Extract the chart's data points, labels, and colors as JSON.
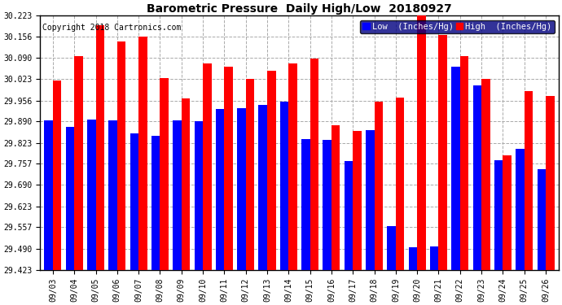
{
  "title": "Barometric Pressure  Daily High/Low  20180927",
  "copyright": "Copyright 2018 Cartronics.com",
  "ylabel_low": "Low  (Inches/Hg)",
  "ylabel_high": "High  (Inches/Hg)",
  "dates": [
    "09/03",
    "09/04",
    "09/05",
    "09/06",
    "09/07",
    "09/08",
    "09/09",
    "09/10",
    "09/11",
    "09/12",
    "09/13",
    "09/14",
    "09/15",
    "09/16",
    "09/17",
    "09/18",
    "09/19",
    "09/20",
    "09/21",
    "09/22",
    "09/23",
    "09/24",
    "09/25",
    "09/26"
  ],
  "low_values": [
    29.893,
    29.872,
    29.897,
    29.893,
    29.853,
    29.845,
    29.893,
    29.891,
    29.929,
    29.933,
    29.942,
    29.953,
    29.835,
    29.833,
    29.765,
    29.863,
    29.56,
    29.493,
    29.497,
    30.062,
    30.003,
    29.768,
    29.803,
    29.74
  ],
  "high_values": [
    30.02,
    30.095,
    30.192,
    30.143,
    30.158,
    30.027,
    29.963,
    30.073,
    30.063,
    30.023,
    30.05,
    30.073,
    30.088,
    29.878,
    29.86,
    29.953,
    29.965,
    30.228,
    30.162,
    30.095,
    30.025,
    29.783,
    29.985,
    29.97
  ],
  "ylim": [
    29.423,
    30.223
  ],
  "yticks": [
    29.423,
    29.49,
    29.557,
    29.623,
    29.69,
    29.757,
    29.823,
    29.89,
    29.956,
    30.023,
    30.09,
    30.156,
    30.223
  ],
  "background_color": "#ffffff",
  "low_color": "#0000ff",
  "high_color": "#ff0000",
  "grid_color": "#aaaaaa",
  "title_fontsize": 10,
  "tick_fontsize": 7,
  "legend_fontsize": 7.5,
  "copyright_fontsize": 7
}
